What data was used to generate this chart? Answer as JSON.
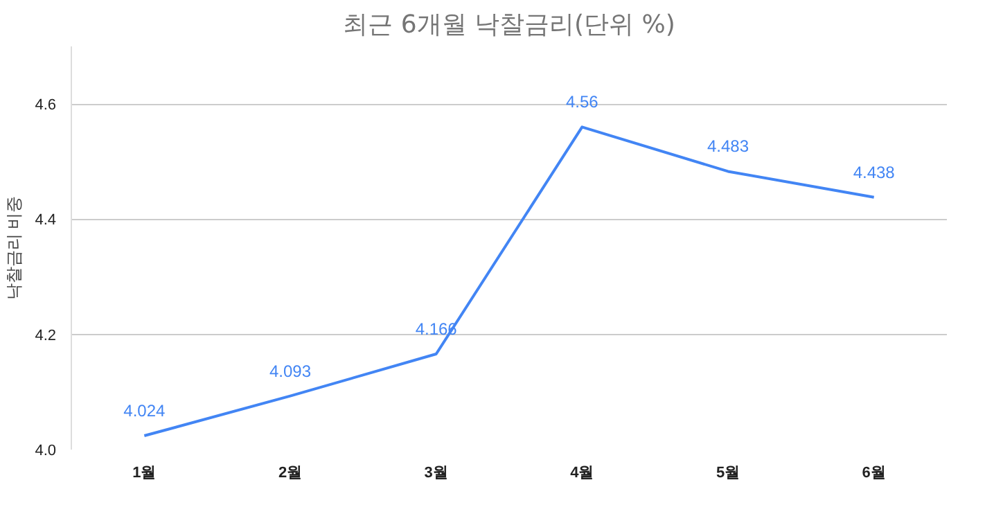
{
  "chart_data": {
    "type": "line",
    "title": "최근 6개월 낙찰금리(단위 %)",
    "ylabel": "낙찰금리 비중",
    "categories": [
      "1월",
      "2월",
      "3월",
      "4월",
      "5월",
      "6월"
    ],
    "series": [
      {
        "color": "#4285f4",
        "values": [
          4.024,
          4.093,
          4.166,
          4.56,
          4.483,
          4.438
        ]
      }
    ],
    "ylim": [
      4.0,
      4.7
    ],
    "yticks": [
      {
        "value": 4.0,
        "label": "4.0"
      },
      {
        "value": 4.2,
        "label": "4.2"
      },
      {
        "value": 4.4,
        "label": "4.4"
      },
      {
        "value": 4.6,
        "label": "4.6"
      }
    ],
    "grid": "y",
    "marker": "none",
    "line_style": "solid",
    "data_labels": true
  }
}
